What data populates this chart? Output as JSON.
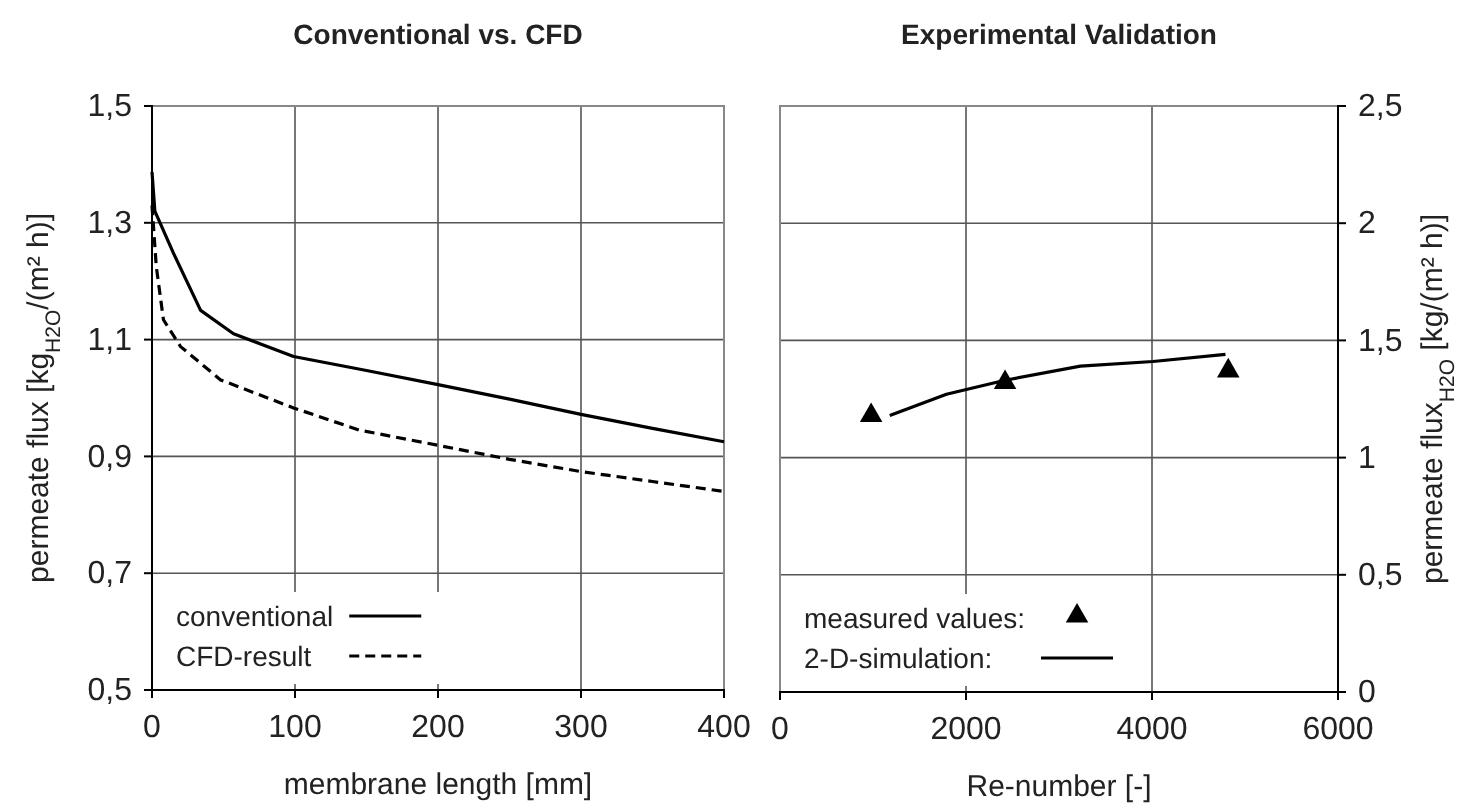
{
  "chart_data": [
    {
      "type": "line",
      "title": "Conventional vs. CFD",
      "xlabel": "membrane length [mm]",
      "ylabel": "permeate flux [kg$_{H2O}$/(m² h)]",
      "xlim": [
        0,
        400
      ],
      "xticks": [
        0,
        100,
        200,
        300,
        400
      ],
      "ylim": [
        0.5,
        1.5
      ],
      "yticks": [
        {
          "value": 0.5,
          "label": "0,5"
        },
        {
          "value": 0.7,
          "label": "0,7"
        },
        {
          "value": 0.9,
          "label": "0,9"
        },
        {
          "value": 1.1,
          "label": "1,1"
        },
        {
          "value": 1.3,
          "label": "1,3"
        },
        {
          "value": 1.5,
          "label": "1,5"
        }
      ],
      "grid": true,
      "legend": "bottom left",
      "series": [
        {
          "name": "conventional",
          "color": "#000000",
          "line_style": "solid",
          "x": [
            0,
            2,
            15,
            34,
            57,
            99,
            150,
            200,
            250,
            300,
            350,
            400
          ],
          "values": [
            1.387,
            1.32,
            1.248,
            1.15,
            1.11,
            1.071,
            1.047,
            1.023,
            0.998,
            0.972,
            0.948,
            0.925
          ]
        },
        {
          "name": "CFD-result",
          "color": "#000000",
          "line_style": "dashed",
          "x": [
            0,
            3,
            8,
            20,
            48,
            99,
            145,
            200,
            250,
            300,
            350,
            400
          ],
          "values": [
            1.33,
            1.225,
            1.134,
            1.088,
            1.031,
            0.983,
            0.945,
            0.919,
            0.895,
            0.874,
            0.857,
            0.84
          ]
        }
      ]
    },
    {
      "type": "line",
      "title": "Experimental Validation",
      "xlabel": "Re-number [-]",
      "y2label": "permeate flux$_{H2O}$ [kg/(m² h)]",
      "xlim": [
        0,
        6000
      ],
      "xticks": [
        0,
        2000,
        4000,
        6000
      ],
      "y2lim": [
        0,
        2.5
      ],
      "y2ticks": [
        0,
        {
          "value": 0.5,
          "label": "0,5"
        },
        1,
        {
          "value": 1.5,
          "label": "1,5"
        },
        2,
        {
          "value": 2.5,
          "label": "2,5"
        }
      ],
      "grid": true,
      "legend": "bottom left",
      "series": [
        {
          "name": "measured values:",
          "type": "scatter",
          "marker": "triangle",
          "axis": "y2",
          "color": "#000000",
          "x": [
            980,
            2420,
            4820
          ],
          "values": [
            1.18,
            1.32,
            1.37
          ]
        },
        {
          "name": "2-D-simulation:",
          "type": "line",
          "axis": "y2",
          "line_style": "solid",
          "color": "#000000",
          "x": [
            1180,
            1790,
            2420,
            3230,
            4010,
            4790
          ],
          "values": [
            1.18,
            1.27,
            1.33,
            1.39,
            1.41,
            1.44
          ]
        }
      ]
    }
  ]
}
